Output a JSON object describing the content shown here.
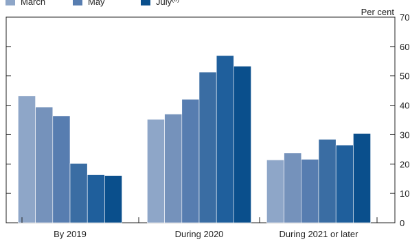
{
  "chart_data": {
    "type": "bar",
    "title": "",
    "unit_label": "Per cent",
    "categories": [
      "By 2019",
      "During 2020",
      "During 2021 or later"
    ],
    "series": [
      {
        "name": "March",
        "color": "#8EA6C8",
        "values": [
          43.2,
          35.2,
          21.4
        ]
      },
      {
        "name": "",
        "color": "#7592BB",
        "values": [
          39.4,
          37.0,
          23.8
        ]
      },
      {
        "name": "May",
        "color": "#577DB0",
        "values": [
          36.4,
          42.0,
          21.6
        ]
      },
      {
        "name": "",
        "color": "#3A6DA3",
        "values": [
          20.2,
          51.3,
          28.4
        ]
      },
      {
        "name": "",
        "color": "#1F5F9C",
        "values": [
          16.4,
          56.9,
          26.4
        ]
      },
      {
        "name": "July(b)",
        "color": "#0A4F8C",
        "values": [
          16.0,
          53.3,
          30.4
        ]
      }
    ],
    "y_ticks": [
      0,
      10,
      20,
      30,
      40,
      50,
      60,
      70
    ],
    "ylim": [
      0,
      70
    ],
    "grid": false,
    "legend_position": "top-left"
  }
}
